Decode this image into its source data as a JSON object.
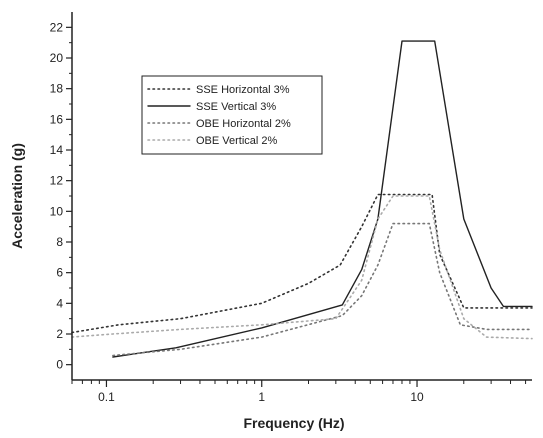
{
  "chart_data": {
    "type": "line",
    "xlabel": "Frequency (Hz)",
    "ylabel": "Acceleration (g)",
    "x_scale": "log",
    "xlim": [
      0.06,
      55
    ],
    "ylim": [
      -1,
      23
    ],
    "x_ticks": [
      {
        "value": 0.1,
        "label": "0.1"
      },
      {
        "value": 1,
        "label": "1"
      },
      {
        "value": 10,
        "label": "10"
      }
    ],
    "y_ticks": [
      0,
      2,
      4,
      6,
      8,
      10,
      12,
      14,
      16,
      18,
      20,
      22
    ],
    "grid": false,
    "legend_position": "upper-left",
    "series": [
      {
        "name": "SSE Horizontal 3%",
        "style": "dotted",
        "color": "#333333",
        "points": [
          [
            0.06,
            2.1
          ],
          [
            0.12,
            2.6
          ],
          [
            0.3,
            3.0
          ],
          [
            1.0,
            4.0
          ],
          [
            2.0,
            5.3
          ],
          [
            3.2,
            6.5
          ],
          [
            4.4,
            9.0
          ],
          [
            5.6,
            11.1
          ],
          [
            12.5,
            11.1
          ],
          [
            14.0,
            7.2
          ],
          [
            20.0,
            3.7
          ],
          [
            34.0,
            3.7
          ],
          [
            55.0,
            3.7
          ]
        ]
      },
      {
        "name": "SSE Vertical 3%",
        "style": "solid",
        "color": "#222222",
        "points": [
          [
            0.11,
            0.5
          ],
          [
            0.28,
            1.1
          ],
          [
            1.0,
            2.4
          ],
          [
            3.3,
            3.9
          ],
          [
            4.4,
            6.2
          ],
          [
            5.6,
            9.5
          ],
          [
            8.0,
            21.1
          ],
          [
            13.0,
            21.1
          ],
          [
            20.0,
            9.5
          ],
          [
            30.0,
            5.0
          ],
          [
            36.0,
            3.8
          ],
          [
            55.0,
            3.8
          ]
        ]
      },
      {
        "name": "OBE Horizontal 2%",
        "style": "dotted",
        "color": "#777777",
        "points": [
          [
            0.11,
            0.6
          ],
          [
            0.3,
            1.0
          ],
          [
            1.0,
            1.8
          ],
          [
            3.3,
            3.2
          ],
          [
            4.4,
            4.5
          ],
          [
            5.6,
            6.5
          ],
          [
            7.0,
            9.2
          ],
          [
            12.0,
            9.2
          ],
          [
            14.0,
            6.0
          ],
          [
            19.0,
            2.6
          ],
          [
            28.0,
            2.3
          ],
          [
            55.0,
            2.3
          ]
        ]
      },
      {
        "name": "OBE Vertical 2%",
        "style": "dotted",
        "color": "#aaaaaa",
        "points": [
          [
            0.06,
            1.8
          ],
          [
            0.11,
            2.0
          ],
          [
            0.3,
            2.3
          ],
          [
            1.0,
            2.6
          ],
          [
            3.0,
            3.0
          ],
          [
            4.4,
            5.5
          ],
          [
            5.6,
            9.5
          ],
          [
            7.0,
            11.0
          ],
          [
            12.0,
            11.0
          ],
          [
            14.0,
            7.5
          ],
          [
            20.0,
            3.0
          ],
          [
            28.0,
            1.8
          ],
          [
            55.0,
            1.7
          ]
        ]
      }
    ]
  }
}
